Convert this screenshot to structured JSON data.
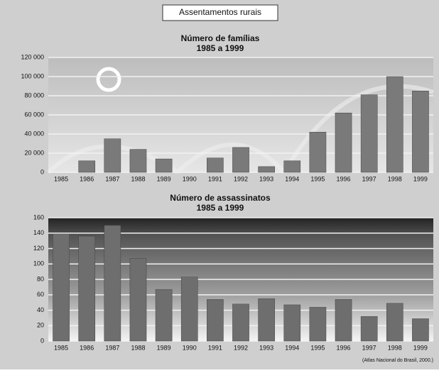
{
  "title": "Assentamentos rurais",
  "source": "(Atlas Nacional do Brasil, 2000.)",
  "chart_data": [
    {
      "type": "bar",
      "title": "Número de famílias",
      "subtitle": "1985 a 1999",
      "categories": [
        "1985",
        "1986",
        "1987",
        "1988",
        "1989",
        "1990",
        "1991",
        "1992",
        "1993",
        "1994",
        "1995",
        "1996",
        "1997",
        "1998",
        "1999"
      ],
      "values": [
        0,
        12000,
        35000,
        24000,
        14000,
        0,
        15000,
        26000,
        6000,
        12000,
        42000,
        62000,
        81000,
        100000,
        85000
      ],
      "color": "#7a7a7a",
      "ylim": [
        0,
        120000
      ],
      "yticks": [
        0,
        {
          "value": 20000,
          "label": "20 000"
        },
        {
          "value": 40000,
          "label": "40 000"
        },
        {
          "value": 60000,
          "label": "60 000"
        },
        {
          "value": 80000,
          "label": "80 000"
        },
        {
          "value": 100000,
          "label": "100 000"
        },
        {
          "value": 120000,
          "label": "120 000"
        }
      ],
      "grid": true
    },
    {
      "type": "bar",
      "title": "Número de assassinatos",
      "subtitle": "1985 a 1999",
      "categories": [
        "1985",
        "1986",
        "1987",
        "1988",
        "1989",
        "1990",
        "1991",
        "1992",
        "1993",
        "1994",
        "1995",
        "1996",
        "1997",
        "1998",
        "1999"
      ],
      "values": [
        139,
        136,
        150,
        107,
        67,
        83,
        54,
        48,
        55,
        47,
        44,
        54,
        32,
        49,
        29
      ],
      "color": "#6e6e6e",
      "ylim": [
        0,
        160
      ],
      "yticks": [
        0,
        20,
        40,
        60,
        80,
        100,
        120,
        140,
        160
      ],
      "grid": true
    }
  ]
}
